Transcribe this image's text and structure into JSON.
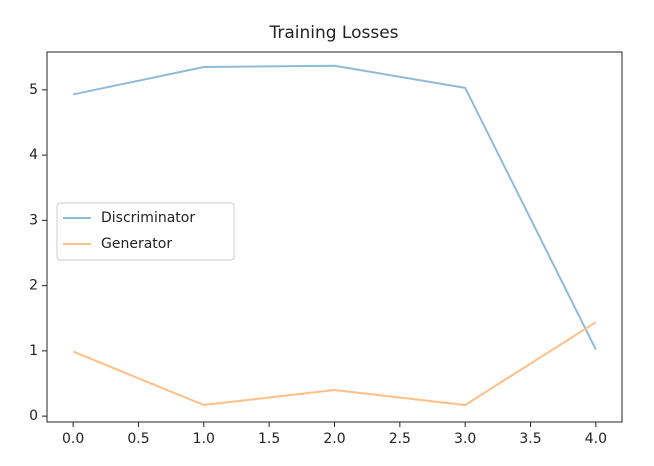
{
  "chart_data": {
    "type": "line",
    "title": "Training Losses",
    "x": [
      0,
      1,
      2,
      3,
      4
    ],
    "series": [
      {
        "name": "Discriminator",
        "color": "#8fbbd9",
        "values": [
          4.93,
          5.35,
          5.37,
          5.03,
          1.02
        ]
      },
      {
        "name": "Generator",
        "color": "#ffbf86",
        "values": [
          0.99,
          0.17,
          0.4,
          0.17,
          1.44
        ]
      }
    ],
    "xlim": [
      -0.2,
      4.2
    ],
    "xticks": [
      {
        "value": 0,
        "label": "0.0"
      },
      {
        "value": 0.5,
        "label": "0.5"
      },
      {
        "value": 1,
        "label": "1.0"
      },
      {
        "value": 1.5,
        "label": "1.5"
      },
      {
        "value": 2,
        "label": "2.0"
      },
      {
        "value": 2.5,
        "label": "2.5"
      },
      {
        "value": 3,
        "label": "3.0"
      },
      {
        "value": 3.5,
        "label": "3.5"
      },
      {
        "value": 4,
        "label": "4.0"
      }
    ],
    "ylim": [
      -0.09,
      5.58
    ],
    "yticks": [
      0,
      1,
      2,
      3,
      4,
      5
    ],
    "legend": "center left"
  }
}
